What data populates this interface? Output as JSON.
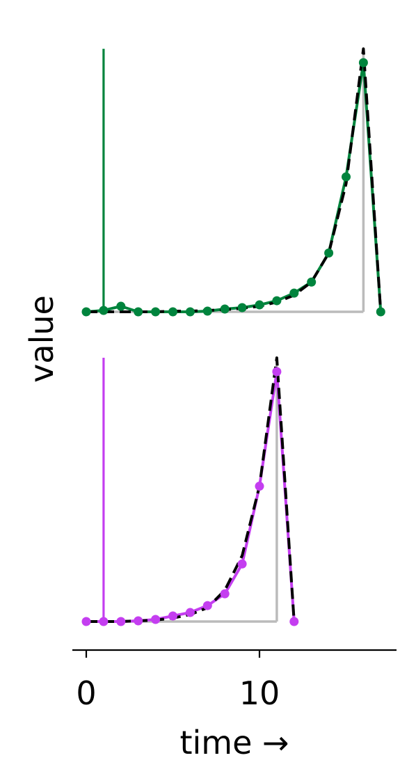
{
  "ylabel": "value",
  "xlabel": "time →",
  "x_ticks": [
    0,
    10
  ],
  "xlim": [
    -0.8,
    18
  ],
  "colors": {
    "top": "#00843d",
    "bottom": "#c43ef0",
    "fit": "#000000",
    "reference": "#bbbbbb"
  },
  "chart_data": [
    {
      "type": "line",
      "panel": "top",
      "ylim": [
        -0.1,
        3.6
      ],
      "grid": false,
      "series": [
        {
          "role": "data",
          "color": "#00843d",
          "style": "solid-with-markers",
          "x": [
            0,
            1,
            2,
            3,
            4,
            5,
            6,
            7,
            8,
            9,
            10,
            11,
            12,
            13,
            14,
            15,
            16,
            17
          ],
          "y": [
            0.0,
            0.02,
            0.08,
            0.0,
            0.0,
            0.0,
            0.0,
            0.01,
            0.04,
            0.06,
            0.1,
            0.16,
            0.27,
            0.43,
            0.85,
            1.95,
            3.6,
            0.0
          ]
        },
        {
          "role": "fit",
          "color": "#000000",
          "style": "dashed",
          "x": [
            0,
            1,
            2,
            3,
            4,
            5,
            6,
            7,
            8,
            9,
            10,
            11,
            12,
            13,
            14,
            15,
            16,
            17
          ],
          "y": [
            0.0,
            0.0,
            0.0,
            0.0,
            0.0,
            0.01,
            0.01,
            0.02,
            0.03,
            0.05,
            0.08,
            0.14,
            0.24,
            0.43,
            0.85,
            1.85,
            3.8,
            0.0
          ]
        }
      ],
      "markers": [
        {
          "x": 1,
          "color": "#00843d",
          "ymin": 0.0,
          "ymax": 3.8
        },
        {
          "x": 16,
          "color": "#bbbbbb",
          "ymin": 0.0,
          "ymax": 3.8
        }
      ],
      "baseline": {
        "y": 0.0,
        "x0": 0,
        "x1": 16,
        "color": "#bbbbbb"
      }
    },
    {
      "type": "line",
      "panel": "bottom",
      "ylim": [
        -0.1,
        3.6
      ],
      "grid": false,
      "series": [
        {
          "role": "data",
          "color": "#c43ef0",
          "style": "solid-with-markers",
          "x": [
            0,
            1,
            2,
            3,
            4,
            5,
            6,
            7,
            8,
            9,
            10,
            11,
            12
          ],
          "y": [
            0.0,
            0.0,
            0.0,
            0.01,
            0.03,
            0.08,
            0.13,
            0.23,
            0.4,
            0.83,
            1.95,
            3.6,
            0.0
          ]
        },
        {
          "role": "fit",
          "color": "#000000",
          "style": "dashed",
          "x": [
            0,
            1,
            2,
            3,
            4,
            5,
            6,
            7,
            8,
            9,
            10,
            11,
            12
          ],
          "y": [
            0.0,
            0.0,
            0.0,
            0.01,
            0.02,
            0.05,
            0.1,
            0.2,
            0.45,
            0.95,
            1.95,
            3.8,
            0.0
          ]
        }
      ],
      "markers": [
        {
          "x": 1,
          "color": "#c43ef0",
          "ymin": 0.0,
          "ymax": 3.8
        },
        {
          "x": 11,
          "color": "#bbbbbb",
          "ymin": 0.0,
          "ymax": 3.8
        }
      ],
      "baseline": {
        "y": 0.0,
        "x0": 0,
        "x1": 11,
        "color": "#bbbbbb"
      }
    }
  ]
}
